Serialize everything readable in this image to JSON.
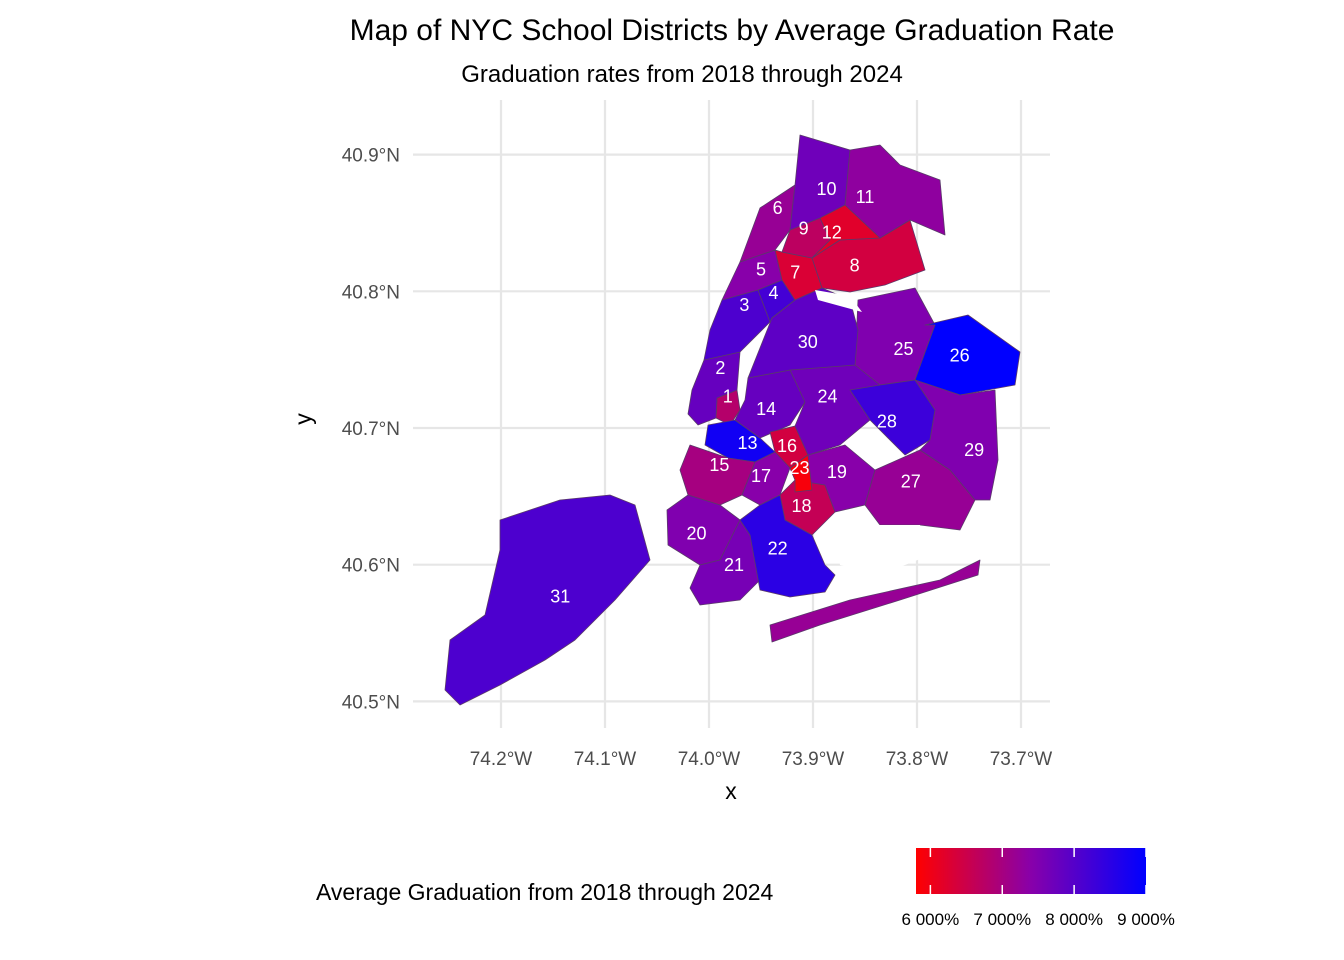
{
  "chart_data": {
    "type": "choropleth-map",
    "title": "Map of NYC School Districts by Average Graduation Rate",
    "subtitle": "Graduation rates from 2018 through 2024",
    "xlabel": "x",
    "ylabel": "y",
    "x_ticks": [
      {
        "value": -74.2,
        "label": "74.2°W"
      },
      {
        "value": -74.1,
        "label": "74.1°W"
      },
      {
        "value": -74.0,
        "label": "74.0°W"
      },
      {
        "value": -73.9,
        "label": "73.9°W"
      },
      {
        "value": -73.8,
        "label": "73.8°W"
      },
      {
        "value": -73.7,
        "label": "73.7°W"
      }
    ],
    "y_ticks": [
      {
        "value": 40.9,
        "label": "40.9°N"
      },
      {
        "value": 40.8,
        "label": "40.8°N"
      },
      {
        "value": 40.7,
        "label": "40.7°N"
      },
      {
        "value": 40.6,
        "label": "40.6°N"
      },
      {
        "value": 40.5,
        "label": "40.5°N"
      }
    ],
    "xlim": [
      -74.27,
      -73.67
    ],
    "ylim": [
      40.48,
      40.935
    ],
    "grid": true,
    "legend": {
      "title": "Average Graduation from 2018 through 2024",
      "position": "bottom",
      "low_color": "#FF0000",
      "high_color": "#0000FF",
      "range": [
        58,
        90
      ],
      "ticks": [
        {
          "value": 60,
          "label": "6 000%"
        },
        {
          "value": 70,
          "label": "7 000%"
        },
        {
          "value": 80,
          "label": "8 000%"
        },
        {
          "value": 90,
          "label": "9 000%"
        }
      ]
    },
    "districts": [
      {
        "id": "1",
        "lon": -73.982,
        "lat": 40.722,
        "rate": 68
      },
      {
        "id": "2",
        "lon": -73.989,
        "lat": 40.743,
        "rate": 78
      },
      {
        "id": "3",
        "lon": -73.966,
        "lat": 40.789,
        "rate": 81
      },
      {
        "id": "4",
        "lon": -73.938,
        "lat": 40.798,
        "rate": 82
      },
      {
        "id": "5",
        "lon": -73.95,
        "lat": 40.815,
        "rate": 74
      },
      {
        "id": "6",
        "lon": -73.934,
        "lat": 40.86,
        "rate": 72
      },
      {
        "id": "7",
        "lon": -73.917,
        "lat": 40.813,
        "rate": 63
      },
      {
        "id": "8",
        "lon": -73.86,
        "lat": 40.818,
        "rate": 64
      },
      {
        "id": "9",
        "lon": -73.909,
        "lat": 40.845,
        "rate": 67
      },
      {
        "id": "10",
        "lon": -73.887,
        "lat": 40.874,
        "rate": 77
      },
      {
        "id": "11",
        "lon": -73.85,
        "lat": 40.868,
        "rate": 73
      },
      {
        "id": "12",
        "lon": -73.882,
        "lat": 40.842,
        "rate": 62
      },
      {
        "id": "13",
        "lon": -73.963,
        "lat": 40.688,
        "rate": 88
      },
      {
        "id": "14",
        "lon": -73.945,
        "lat": 40.713,
        "rate": 78
      },
      {
        "id": "15",
        "lon": -73.99,
        "lat": 40.672,
        "rate": 70
      },
      {
        "id": "16",
        "lon": -73.925,
        "lat": 40.686,
        "rate": 64
      },
      {
        "id": "17",
        "lon": -73.95,
        "lat": 40.664,
        "rate": 74
      },
      {
        "id": "18",
        "lon": -73.911,
        "lat": 40.642,
        "rate": 66
      },
      {
        "id": "19",
        "lon": -73.877,
        "lat": 40.667,
        "rate": 74
      },
      {
        "id": "20",
        "lon": -74.012,
        "lat": 40.622,
        "rate": 75
      },
      {
        "id": "21",
        "lon": -73.976,
        "lat": 40.599,
        "rate": 76
      },
      {
        "id": "22",
        "lon": -73.934,
        "lat": 40.611,
        "rate": 85
      },
      {
        "id": "23",
        "lon": -73.913,
        "lat": 40.67,
        "rate": 59
      },
      {
        "id": "24",
        "lon": -73.886,
        "lat": 40.722,
        "rate": 77
      },
      {
        "id": "25",
        "lon": -73.813,
        "lat": 40.757,
        "rate": 75
      },
      {
        "id": "26",
        "lon": -73.759,
        "lat": 40.752,
        "rate": 90
      },
      {
        "id": "27",
        "lon": -73.806,
        "lat": 40.66,
        "rate": 72
      },
      {
        "id": "28",
        "lon": -73.829,
        "lat": 40.704,
        "rate": 83
      },
      {
        "id": "29",
        "lon": -73.745,
        "lat": 40.683,
        "rate": 75
      },
      {
        "id": "30",
        "lon": -73.905,
        "lat": 40.762,
        "rate": 79
      },
      {
        "id": "31",
        "lon": -74.143,
        "lat": 40.576,
        "rate": 81
      }
    ]
  }
}
